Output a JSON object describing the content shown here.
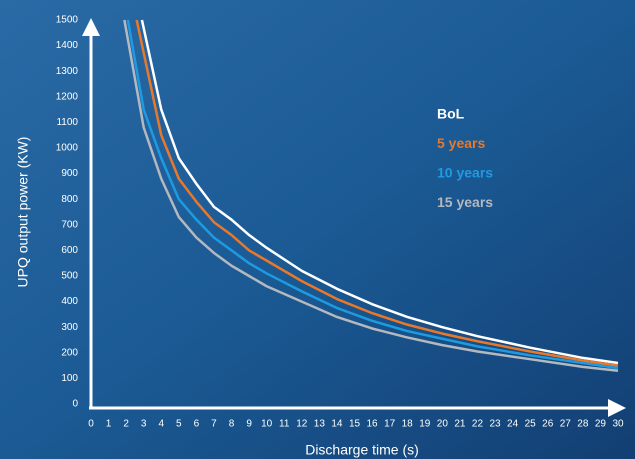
{
  "chart_data": {
    "type": "line",
    "xlabel": "Discharge time (s)",
    "ylabel": "UPQ output power (KW)",
    "xlim": [
      0,
      30
    ],
    "ylim": [
      0,
      1500
    ],
    "xticks": [
      0,
      1,
      2,
      3,
      4,
      5,
      6,
      7,
      8,
      9,
      10,
      11,
      12,
      13,
      14,
      15,
      16,
      17,
      18,
      19,
      20,
      21,
      22,
      23,
      24,
      25,
      26,
      27,
      28,
      29,
      30
    ],
    "yticks": [
      0,
      100,
      200,
      300,
      400,
      500,
      600,
      700,
      800,
      900,
      1000,
      1100,
      1200,
      1300,
      1400,
      1500
    ],
    "grid": false,
    "legend": "right",
    "series": [
      {
        "name": "BoL",
        "color": "#ffffff",
        "x": [
          2.9,
          4,
          5,
          6,
          7,
          8,
          9,
          10,
          12,
          14,
          16,
          18,
          20,
          22,
          25,
          28,
          30
        ],
        "values": [
          1500,
          1150,
          960,
          860,
          770,
          720,
          660,
          610,
          520,
          450,
          390,
          340,
          300,
          265,
          220,
          180,
          160
        ]
      },
      {
        "name": "5 years",
        "color": "#e8782a",
        "x": [
          2.6,
          4,
          5,
          6,
          7,
          8,
          9,
          10,
          12,
          14,
          16,
          18,
          20,
          22,
          25,
          28,
          30
        ],
        "values": [
          1500,
          1050,
          880,
          790,
          710,
          660,
          600,
          560,
          480,
          410,
          355,
          310,
          275,
          245,
          205,
          170,
          150
        ]
      },
      {
        "name": "10 years",
        "color": "#1e9be0",
        "x": [
          2.1,
          3,
          4,
          5,
          6,
          7,
          8,
          9,
          10,
          12,
          14,
          16,
          18,
          20,
          22,
          25,
          28,
          30
        ],
        "values": [
          1500,
          1150,
          960,
          800,
          720,
          650,
          600,
          550,
          510,
          440,
          375,
          325,
          285,
          255,
          225,
          190,
          160,
          140
        ]
      },
      {
        "name": "15 years",
        "color": "#b4b8bf",
        "x": [
          1.9,
          3,
          4,
          5,
          6,
          7,
          8,
          9,
          10,
          12,
          14,
          16,
          18,
          20,
          22,
          25,
          28,
          30
        ],
        "values": [
          1500,
          1080,
          880,
          730,
          650,
          590,
          540,
          500,
          460,
          400,
          340,
          295,
          260,
          230,
          205,
          175,
          145,
          130
        ]
      }
    ]
  }
}
